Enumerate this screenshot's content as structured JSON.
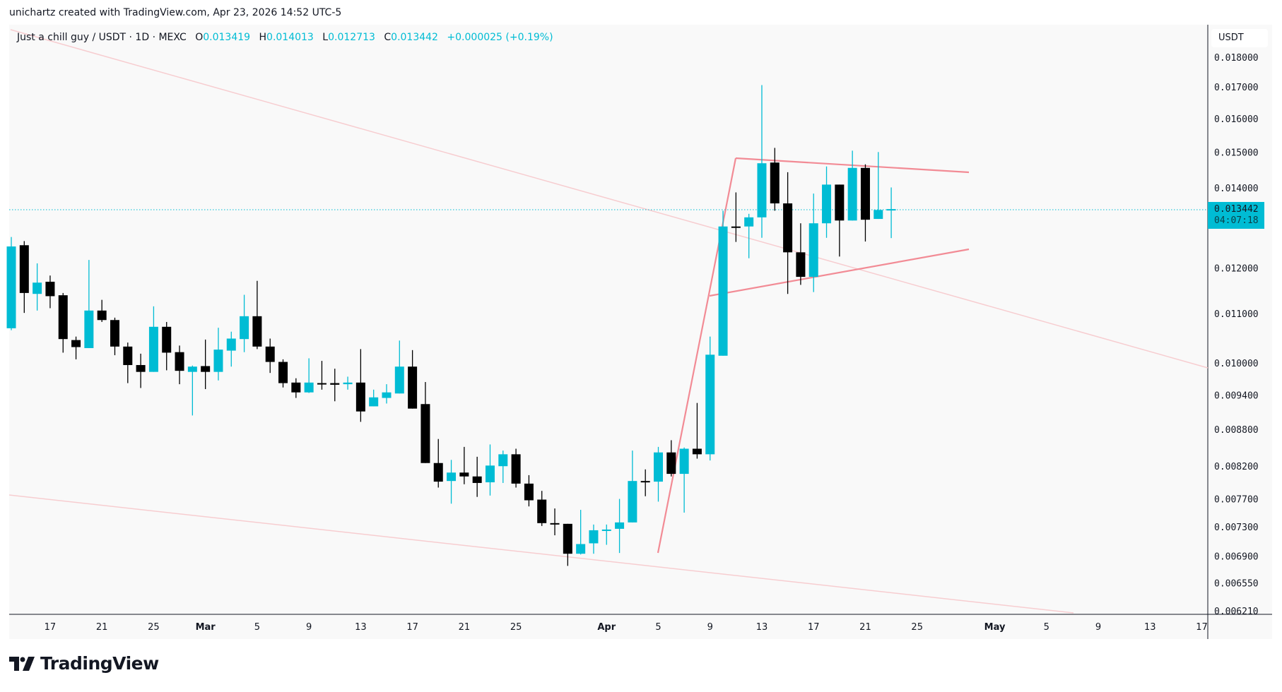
{
  "credit": "unichartz created with TradingView.com, Apr 23, 2026 14:52 UTC-5",
  "legend": {
    "symbol": "Just a chill guy / USDT · 1D · MEXC",
    "o_label": "O",
    "o": "0.013419",
    "h_label": "H",
    "h": "0.014013",
    "l_label": "L",
    "l": "0.012713",
    "c_label": "C",
    "c": "0.013442",
    "change": "+0.000025 (+0.19%)"
  },
  "price_axis": {
    "currency": "USDT",
    "last_price": "0.013442",
    "countdown": "04:07:18"
  },
  "brand": {
    "name": "TradingView"
  },
  "colors": {
    "up": "#00bcd4",
    "down": "#000000",
    "trendline": "#f28b95",
    "trendline_faint": "#f7c9cd"
  },
  "chart_data": {
    "type": "candlestick",
    "title": "Just a chill guy / USDT · 1D · MEXC",
    "scale": "log",
    "ylim": [
      0.00621,
      0.018
    ],
    "y_ticks": [
      "0.018000",
      "0.017000",
      "0.016000",
      "0.015000",
      "0.014000",
      "0.012000",
      "0.011000",
      "0.010000",
      "0.009400",
      "0.008800",
      "0.008200",
      "0.007700",
      "0.007300",
      "0.006900",
      "0.006550",
      "0.006210"
    ],
    "x_ticks": [
      {
        "label": "17",
        "day": 3
      },
      {
        "label": "21",
        "day": 7
      },
      {
        "label": "25",
        "day": 11
      },
      {
        "label": "Mar",
        "day": 15
      },
      {
        "label": "5",
        "day": 19
      },
      {
        "label": "9",
        "day": 23
      },
      {
        "label": "13",
        "day": 27
      },
      {
        "label": "17",
        "day": 31
      },
      {
        "label": "21",
        "day": 35
      },
      {
        "label": "25",
        "day": 39
      },
      {
        "label": "Apr",
        "day": 46
      },
      {
        "label": "5",
        "day": 50
      },
      {
        "label": "9",
        "day": 54
      },
      {
        "label": "13",
        "day": 58
      },
      {
        "label": "17",
        "day": 62
      },
      {
        "label": "21",
        "day": 66
      },
      {
        "label": "25",
        "day": 70
      },
      {
        "label": "May",
        "day": 76
      },
      {
        "label": "5",
        "day": 80
      },
      {
        "label": "9",
        "day": 84
      },
      {
        "label": "13",
        "day": 88
      },
      {
        "label": "17",
        "day": 92
      }
    ],
    "candles_columns": [
      "date",
      "open",
      "high",
      "low",
      "close"
    ],
    "candles": [
      [
        "2026-02-14",
        0.01069,
        0.01274,
        0.01065,
        0.01251
      ],
      [
        "2026-02-15",
        0.01254,
        0.01264,
        0.01101,
        0.01144
      ],
      [
        "2026-02-16",
        0.01142,
        0.01211,
        0.01106,
        0.01167
      ],
      [
        "2026-02-17",
        0.01169,
        0.01183,
        0.01111,
        0.01137
      ],
      [
        "2026-02-18",
        0.01139,
        0.01144,
        0.0102,
        0.01047
      ],
      [
        "2026-02-19",
        0.01045,
        0.01052,
        0.01007,
        0.01031
      ],
      [
        "2026-02-20",
        0.01029,
        0.01219,
        0.01029,
        0.01106
      ],
      [
        "2026-02-21",
        0.01106,
        0.01129,
        0.01082,
        0.01086
      ],
      [
        "2026-02-22",
        0.01086,
        0.01091,
        0.01015,
        0.01032
      ],
      [
        "2026-02-23",
        0.01032,
        0.0104,
        0.00962,
        0.00996
      ],
      [
        "2026-02-24",
        0.00996,
        0.01018,
        0.00953,
        0.00983
      ],
      [
        "2026-02-25",
        0.00983,
        0.01115,
        0.00983,
        0.01072
      ],
      [
        "2026-02-26",
        0.01072,
        0.01082,
        0.00986,
        0.0102
      ],
      [
        "2026-02-27",
        0.01021,
        0.01034,
        0.0096,
        0.00985
      ],
      [
        "2026-02-28",
        0.00983,
        0.00995,
        0.00904,
        0.00993
      ],
      [
        "2026-03-01",
        0.00994,
        0.01046,
        0.00951,
        0.00983
      ],
      [
        "2026-03-02",
        0.00983,
        0.0107,
        0.00967,
        0.01026
      ],
      [
        "2026-03-03",
        0.01024,
        0.01062,
        0.00993,
        0.01048
      ],
      [
        "2026-03-04",
        0.01047,
        0.0114,
        0.01021,
        0.01094
      ],
      [
        "2026-03-05",
        0.01094,
        0.01171,
        0.01027,
        0.01032
      ],
      [
        "2026-03-06",
        0.01032,
        0.01048,
        0.00981,
        0.01002
      ],
      [
        "2026-03-07",
        0.01002,
        0.01007,
        0.00954,
        0.00962
      ],
      [
        "2026-03-08",
        0.00963,
        0.00971,
        0.00935,
        0.00945
      ],
      [
        "2026-03-09",
        0.00945,
        0.01009,
        0.00944,
        0.00963
      ],
      [
        "2026-03-10",
        0.00962,
        0.01004,
        0.0095,
        0.00961
      ],
      [
        "2026-03-11",
        0.00962,
        0.00989,
        0.00929,
        0.00959
      ],
      [
        "2026-03-12",
        0.0096,
        0.00974,
        0.0095,
        0.00963
      ],
      [
        "2026-03-13",
        0.00963,
        0.01027,
        0.00893,
        0.00911
      ],
      [
        "2026-03-14",
        0.0092,
        0.0095,
        0.0092,
        0.00936
      ],
      [
        "2026-03-15",
        0.00935,
        0.0096,
        0.00925,
        0.00945
      ],
      [
        "2026-03-16",
        0.00943,
        0.01044,
        0.00943,
        0.00993
      ],
      [
        "2026-03-17",
        0.00993,
        0.01025,
        0.00916,
        0.00916
      ],
      [
        "2026-03-18",
        0.00924,
        0.00964,
        0.00825,
        0.00825
      ],
      [
        "2026-03-19",
        0.00825,
        0.00864,
        0.00787,
        0.00796
      ],
      [
        "2026-03-20",
        0.00797,
        0.0083,
        0.00763,
        0.0081
      ],
      [
        "2026-03-21",
        0.0081,
        0.00851,
        0.00792,
        0.00804
      ],
      [
        "2026-03-22",
        0.00804,
        0.00835,
        0.00773,
        0.00794
      ],
      [
        "2026-03-23",
        0.00795,
        0.00855,
        0.00775,
        0.00821
      ],
      [
        "2026-03-24",
        0.0082,
        0.00845,
        0.00794,
        0.00839
      ],
      [
        "2026-03-25",
        0.00839,
        0.00848,
        0.00787,
        0.00793
      ],
      [
        "2026-03-26",
        0.00793,
        0.00806,
        0.00759,
        0.00768
      ],
      [
        "2026-03-27",
        0.00769,
        0.00782,
        0.00731,
        0.00735
      ],
      [
        "2026-03-28",
        0.00735,
        0.00756,
        0.00718,
        0.00733
      ],
      [
        "2026-03-29",
        0.00734,
        0.00734,
        0.00677,
        0.00693
      ],
      [
        "2026-03-30",
        0.00693,
        0.00754,
        0.00692,
        0.00706
      ],
      [
        "2026-03-31",
        0.00707,
        0.00733,
        0.00693,
        0.00725
      ],
      [
        "2026-04-01",
        0.00724,
        0.00733,
        0.00705,
        0.00726
      ],
      [
        "2026-04-02",
        0.00727,
        0.0077,
        0.00694,
        0.00736
      ],
      [
        "2026-04-03",
        0.00736,
        0.00845,
        0.00736,
        0.00797
      ],
      [
        "2026-04-04",
        0.00797,
        0.00815,
        0.00774,
        0.00795
      ],
      [
        "2026-04-05",
        0.00796,
        0.00851,
        0.00766,
        0.00842
      ],
      [
        "2026-04-06",
        0.00842,
        0.00862,
        0.00804,
        0.00808
      ],
      [
        "2026-04-07",
        0.00808,
        0.0085,
        0.0075,
        0.00848
      ],
      [
        "2026-04-08",
        0.00848,
        0.00926,
        0.00832,
        0.00839
      ],
      [
        "2026-04-09",
        0.00839,
        0.01052,
        0.00829,
        0.01016
      ],
      [
        "2026-04-10",
        0.01014,
        0.0134,
        0.01014,
        0.013
      ],
      [
        "2026-04-11",
        0.013,
        0.01388,
        0.01262,
        0.01297
      ],
      [
        "2026-04-12",
        0.013,
        0.01332,
        0.01223,
        0.01323
      ],
      [
        "2026-04-13",
        0.01323,
        0.01706,
        0.01272,
        0.01468
      ],
      [
        "2026-04-14",
        0.0147,
        0.01512,
        0.0134,
        0.01359
      ],
      [
        "2026-04-15",
        0.01359,
        0.01443,
        0.01142,
        0.01237
      ],
      [
        "2026-04-16",
        0.01237,
        0.01308,
        0.01162,
        0.0118
      ],
      [
        "2026-04-17",
        0.0118,
        0.01385,
        0.01146,
        0.01308
      ],
      [
        "2026-04-18",
        0.01308,
        0.01459,
        0.01272,
        0.01409
      ],
      [
        "2026-04-19",
        0.01409,
        0.01409,
        0.01227,
        0.01315
      ],
      [
        "2026-04-20",
        0.01315,
        0.01504,
        0.01315,
        0.01455
      ],
      [
        "2026-04-21",
        0.01455,
        0.01465,
        0.01263,
        0.01317
      ],
      [
        "2026-04-22",
        0.01319,
        0.015,
        0.01319,
        0.013419
      ],
      [
        "2026-04-23",
        0.013419,
        0.014013,
        0.012713,
        0.013442
      ]
    ]
  }
}
